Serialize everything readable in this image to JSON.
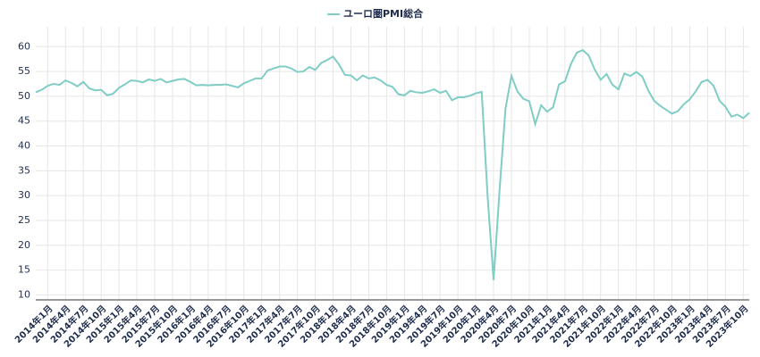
{
  "chart_data": {
    "type": "line",
    "series": [
      {
        "name": "ユーロ圏PMI総合",
        "color": "#7fcdc5",
        "values": [
          50.8,
          51.3,
          52.1,
          52.5,
          52.3,
          53.2,
          52.7,
          52.0,
          52.9,
          51.6,
          51.2,
          51.3,
          50.2,
          50.5,
          51.7,
          52.4,
          53.2,
          53.1,
          52.8,
          53.4,
          53.1,
          53.5,
          52.8,
          53.1,
          53.4,
          53.5,
          52.9,
          52.2,
          52.3,
          52.2,
          52.3,
          52.3,
          52.4,
          52.1,
          51.8,
          52.6,
          53.1,
          53.6,
          53.6,
          55.2,
          55.6,
          56.0,
          56.0,
          55.6,
          54.9,
          55.0,
          55.9,
          55.3,
          56.7,
          57.3,
          58.0,
          56.4,
          54.3,
          54.2,
          53.2,
          54.2,
          53.6,
          53.8,
          53.2,
          52.3,
          51.9,
          50.4,
          50.2,
          51.1,
          50.8,
          50.7,
          51.0,
          51.4,
          50.7,
          51.1,
          49.2,
          49.8,
          49.8,
          50.1,
          50.6,
          50.9,
          29.7,
          13.0,
          31.0,
          47.5,
          54.1,
          51.0,
          49.5,
          49.0,
          44.4,
          48.2,
          46.9,
          47.8,
          52.4,
          53.0,
          56.5,
          58.8,
          59.3,
          58.2,
          55.4,
          53.3,
          54.5,
          52.3,
          51.4,
          54.6,
          54.1,
          54.9,
          54.0,
          51.2,
          49.1,
          48.1,
          47.3,
          46.5,
          47.0,
          48.4,
          49.4,
          51.0,
          52.9,
          53.3,
          52.1,
          49.1,
          47.9,
          45.9,
          46.3,
          45.6,
          46.7
        ]
      }
    ],
    "categories": [
      null,
      null,
      "2014年1月",
      null,
      null,
      "2014年4月",
      null,
      null,
      "2014年7月",
      null,
      null,
      "2014年10月",
      null,
      null,
      "2015年1月",
      null,
      null,
      "2015年4月",
      null,
      null,
      "2015年7月",
      null,
      null,
      "2015年10月",
      null,
      null,
      "2016年1月",
      null,
      null,
      "2016年4月",
      null,
      null,
      "2016年7月",
      null,
      null,
      "2016年10月",
      null,
      null,
      "2017年1月",
      null,
      null,
      "2017年4月",
      null,
      null,
      "2017年7月",
      null,
      null,
      "2017年10月",
      null,
      null,
      "2018年1月",
      null,
      null,
      "2018年4月",
      null,
      null,
      "2018年7月",
      null,
      null,
      "2018年10月",
      null,
      null,
      "2019年1月",
      null,
      null,
      "2019年4月",
      null,
      null,
      "2019年7月",
      null,
      null,
      "2019年10月",
      null,
      null,
      "2020年1月",
      null,
      null,
      "2020年4月",
      null,
      null,
      "2020年7月",
      null,
      null,
      "2020年10月",
      null,
      null,
      "2021年1月",
      null,
      null,
      "2021年4月",
      null,
      null,
      "2021年7月",
      null,
      null,
      "2021年10月",
      null,
      null,
      "2022年1月",
      null,
      null,
      "2022年4月",
      null,
      null,
      "2022年7月",
      null,
      null,
      "2022年10月",
      null,
      null,
      "2023年1月",
      null,
      null,
      "2023年4月",
      null,
      null,
      "2023年7月",
      null,
      null,
      "2023年10月",
      null
    ],
    "ylim": [
      9,
      64
    ],
    "yticks": [
      10,
      15,
      20,
      25,
      30,
      35,
      40,
      45,
      50,
      55,
      60
    ],
    "grid": true
  }
}
